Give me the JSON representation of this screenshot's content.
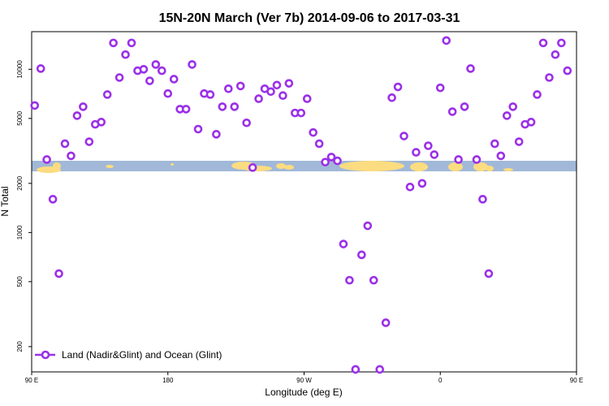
{
  "chart_data": {
    "type": "scatter",
    "title": "15N-20N March (Ver 7b)   2014-09-06 to 2017-03-31",
    "xlabel": "Longitude (deg E)",
    "ylabel": "N Total",
    "x_axis_range": [
      90,
      450
    ],
    "y_axis_range": [
      140,
      17000
    ],
    "y_scale": "log",
    "x_ticks": [
      {
        "value": 90,
        "label": "90 E"
      },
      {
        "value": 180,
        "label": "180"
      },
      {
        "value": 270,
        "label": "90 W"
      },
      {
        "value": 360,
        "label": "0"
      },
      {
        "value": 450,
        "label": "90 E"
      },
      {
        "value": 540,
        "label": "180"
      }
    ],
    "y_ticks": [
      {
        "value": 200,
        "label": "200"
      },
      {
        "value": 500,
        "label": "500"
      },
      {
        "value": 1000,
        "label": "1000"
      },
      {
        "value": 2000,
        "label": "2000"
      },
      {
        "value": 5000,
        "label": "5000"
      },
      {
        "value": 10000,
        "label": "10000"
      }
    ],
    "legend": {
      "position": "bottom-left",
      "entries": [
        "Land (Nadir&Glint) and Ocean (Glint)"
      ]
    },
    "marker_color": "#9b30e8",
    "band_colors": {
      "ocean": "#a1b8d8",
      "land": "#fcdc80"
    },
    "grid": false,
    "series": [
      {
        "name": "Land (Nadir&Glint) and Ocean (Glint)",
        "points": [
          [
            92,
            6000
          ],
          [
            96,
            10100
          ],
          [
            100,
            2800
          ],
          [
            104,
            1600
          ],
          [
            108,
            560
          ],
          [
            112,
            3500
          ],
          [
            116,
            2950
          ],
          [
            120,
            5200
          ],
          [
            124,
            5900
          ],
          [
            128,
            3600
          ],
          [
            132,
            4600
          ],
          [
            136,
            4750
          ],
          [
            140,
            7000
          ],
          [
            144,
            14500
          ],
          [
            148,
            8900
          ],
          [
            152,
            12300
          ],
          [
            156,
            14500
          ],
          [
            160,
            9800
          ],
          [
            164,
            10000
          ],
          [
            168,
            8500
          ],
          [
            172,
            10700
          ],
          [
            176,
            9800
          ],
          [
            180,
            7100
          ],
          [
            184,
            8700
          ],
          [
            188,
            5700
          ],
          [
            192,
            5700
          ],
          [
            196,
            10700
          ],
          [
            200,
            4300
          ],
          [
            204,
            7100
          ],
          [
            208,
            7000
          ],
          [
            212,
            4000
          ],
          [
            216,
            5900
          ],
          [
            220,
            7600
          ],
          [
            224,
            5900
          ],
          [
            228,
            7900
          ],
          [
            232,
            4700
          ],
          [
            236,
            2500
          ],
          [
            240,
            6600
          ],
          [
            244,
            7600
          ],
          [
            248,
            7300
          ],
          [
            252,
            8000
          ],
          [
            256,
            6900
          ],
          [
            260,
            8200
          ],
          [
            264,
            5400
          ],
          [
            268,
            5400
          ],
          [
            272,
            6600
          ],
          [
            276,
            4100
          ],
          [
            280,
            3500
          ],
          [
            284,
            2700
          ],
          [
            288,
            2900
          ],
          [
            292,
            2750
          ],
          [
            296,
            850
          ],
          [
            300,
            510
          ],
          [
            304,
            145
          ],
          [
            308,
            730
          ],
          [
            312,
            1100
          ],
          [
            316,
            510
          ],
          [
            320,
            145
          ],
          [
            324,
            280
          ],
          [
            328,
            6700
          ],
          [
            332,
            7800
          ],
          [
            336,
            3900
          ],
          [
            340,
            1900
          ],
          [
            344,
            3100
          ],
          [
            348,
            2000
          ],
          [
            352,
            3400
          ],
          [
            356,
            3000
          ],
          [
            360,
            7700
          ],
          [
            364,
            15000
          ],
          [
            368,
            5500
          ],
          [
            372,
            2800
          ],
          [
            376,
            5900
          ],
          [
            380,
            10100
          ],
          [
            384,
            2800
          ],
          [
            388,
            1600
          ],
          [
            392,
            560
          ],
          [
            396,
            3500
          ],
          [
            400,
            2950
          ],
          [
            404,
            5200
          ],
          [
            408,
            5900
          ],
          [
            412,
            3600
          ],
          [
            416,
            4600
          ],
          [
            420,
            4750
          ],
          [
            424,
            7000
          ],
          [
            428,
            14500
          ],
          [
            432,
            8900
          ],
          [
            436,
            12300
          ],
          [
            440,
            14500
          ],
          [
            444,
            9800
          ]
        ]
      }
    ]
  }
}
